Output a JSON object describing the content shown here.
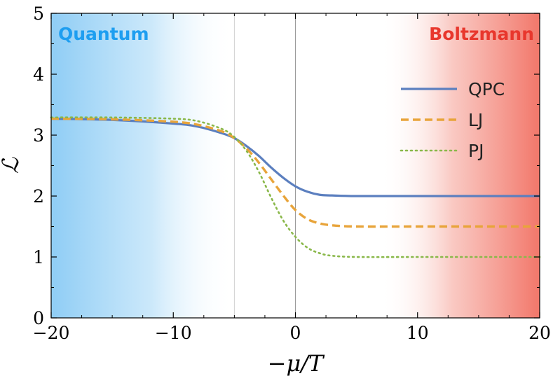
{
  "chart_data": {
    "type": "line",
    "xlabel": "−μ/T",
    "ylabel": "ℒ",
    "xlim": [
      -20,
      20
    ],
    "ylim": [
      0,
      5
    ],
    "xticks": [
      -20,
      -10,
      0,
      10,
      20
    ],
    "yticks": [
      0,
      1,
      2,
      3,
      4,
      5
    ],
    "x_tick_labels": [
      "−20",
      "−10",
      "0",
      "10",
      "20"
    ],
    "y_tick_labels": [
      "0",
      "1",
      "2",
      "3",
      "4",
      "5"
    ],
    "grid": false,
    "legend_position": "top-right",
    "vertical_lines": [
      -5,
      0
    ],
    "regions": [
      {
        "label": "Quantum",
        "x_start": -20,
        "x_end": -5,
        "color": "#8fcdf5",
        "text_color": "#1e9ef0",
        "fade": "left-to-right"
      },
      {
        "label": "Boltzmann",
        "x_start": 7,
        "x_end": 20,
        "color": "#f2776a",
        "text_color": "#e8372d",
        "fade": "right-to-left"
      }
    ],
    "series": [
      {
        "name": "QPC",
        "color": "#5b7fbf",
        "style": "solid",
        "x": [
          -20,
          -15,
          -10,
          -8,
          -6,
          -5,
          -4,
          -3,
          -2,
          -1,
          0,
          1,
          2,
          3,
          5,
          10,
          15,
          20
        ],
        "y": [
          3.27,
          3.25,
          3.19,
          3.14,
          3.03,
          2.95,
          2.82,
          2.66,
          2.47,
          2.3,
          2.16,
          2.07,
          2.02,
          2.01,
          2.0,
          2.0,
          2.0,
          2.0
        ]
      },
      {
        "name": "LJ",
        "color": "#e8a43a",
        "style": "dashed",
        "x": [
          -20,
          -15,
          -10,
          -8,
          -6,
          -5,
          -4,
          -3,
          -2,
          -1,
          0,
          1,
          2,
          3,
          5,
          10,
          15,
          20
        ],
        "y": [
          3.27,
          3.26,
          3.22,
          3.17,
          3.06,
          2.95,
          2.78,
          2.55,
          2.28,
          2.01,
          1.77,
          1.62,
          1.55,
          1.52,
          1.5,
          1.5,
          1.5,
          1.5
        ]
      },
      {
        "name": "PJ",
        "color": "#8ab84a",
        "style": "dotted",
        "x": [
          -20,
          -15,
          -10,
          -8,
          -6,
          -5,
          -4,
          -3,
          -2,
          -1,
          0,
          1,
          2,
          3,
          5,
          10,
          15,
          20
        ],
        "y": [
          3.29,
          3.29,
          3.27,
          3.23,
          3.1,
          2.97,
          2.74,
          2.4,
          1.98,
          1.6,
          1.33,
          1.15,
          1.06,
          1.02,
          1.0,
          1.0,
          1.0,
          1.0
        ]
      }
    ]
  }
}
